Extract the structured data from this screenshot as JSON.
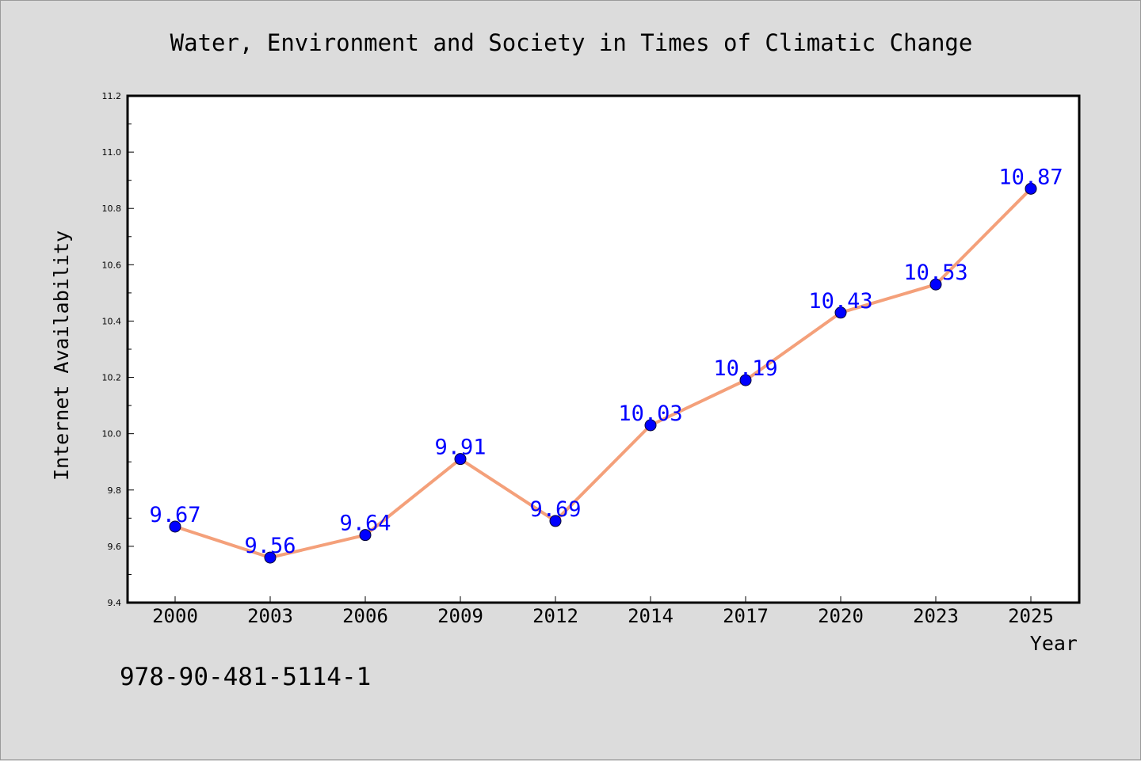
{
  "chart_data": {
    "type": "line",
    "title": "Water, Environment and Society in Times of Climatic Change",
    "xlabel": "Year",
    "ylabel": "Internet Availability",
    "categories": [
      "2000",
      "2003",
      "2006",
      "2009",
      "2012",
      "2014",
      "2017",
      "2020",
      "2023",
      "2025"
    ],
    "series": [
      {
        "values": [
          9.67,
          9.56,
          9.64,
          9.91,
          9.69,
          10.03,
          10.19,
          10.43,
          10.53,
          10.87
        ],
        "line_color": "#f4a07a",
        "marker_color": "#0000ff",
        "label_color": "#0000ff"
      }
    ],
    "ylim": [
      9.4,
      11.2
    ],
    "yticks": [
      "9.4",
      "9.6",
      "9.8",
      "10.0",
      "10.2",
      "10.4",
      "10.6",
      "10.8",
      "11.0",
      "11.2"
    ],
    "data_labels": [
      "9.67",
      "9.56",
      "9.64",
      "9.91",
      "9.69",
      "10.03",
      "10.19",
      "10.43",
      "10.53",
      "10.87"
    ],
    "grid": false,
    "legend": "none"
  },
  "footer": {
    "isbn": "978-90-481-5114-1"
  },
  "colors": {
    "background": "#dcdcdc",
    "plot_area": "#ffffff"
  }
}
